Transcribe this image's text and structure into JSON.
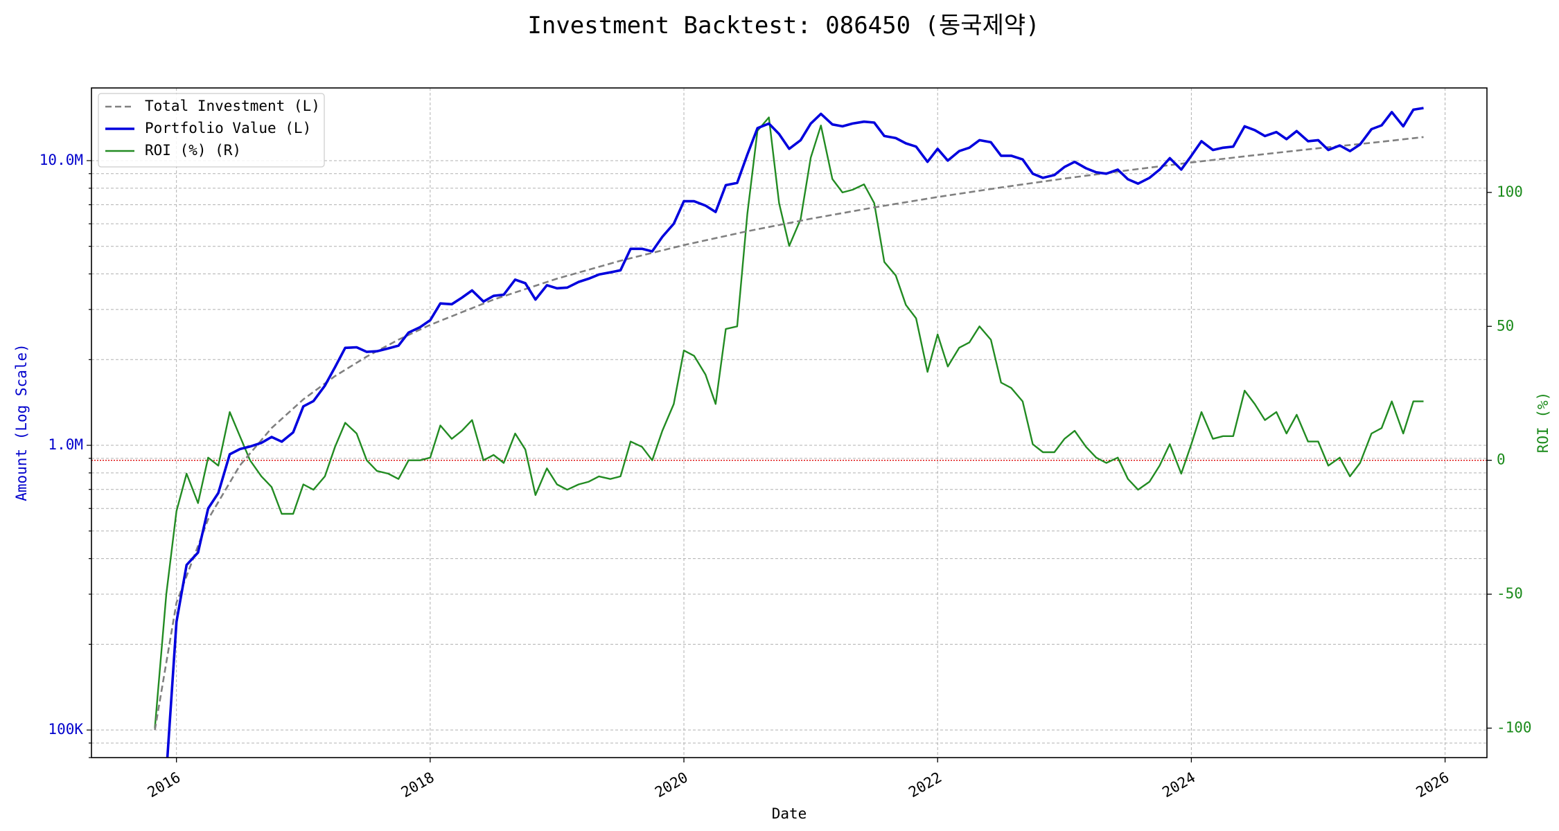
{
  "chart_data": {
    "type": "line",
    "title": "Investment Backtest: 086450 (동국제약)",
    "xlabel": "Date",
    "ylabel_left": "Amount (Log Scale)",
    "ylabel_right": "ROI (%)",
    "y_left_scale": "log",
    "y_left_range": [
      80000,
      18000000
    ],
    "y_left_ticks": [
      {
        "value": 100000,
        "label": "100K"
      },
      {
        "value": 1000000,
        "label": "1.0M"
      },
      {
        "value": 10000000,
        "label": "10.0M"
      }
    ],
    "y_right_range": [
      -111,
      139
    ],
    "y_right_ticks": [
      -100,
      -50,
      0,
      50,
      100
    ],
    "x_range": [
      2015.33,
      2026.33
    ],
    "x_ticks": [
      "2016",
      "2018",
      "2020",
      "2022",
      "2024",
      "2026"
    ],
    "grid": true,
    "legend_position": "top-left",
    "colors": {
      "investment": "#808080",
      "portfolio": "#0000dd",
      "roi": "#228b22",
      "zero_line": "#dd0000",
      "left_axis": "#0000cc",
      "right_axis": "#1a8a1a"
    },
    "reference_line": {
      "axis": "right",
      "value": 0,
      "style": "dotted"
    },
    "series": [
      {
        "name": "Total Investment (L)",
        "axis": "left",
        "style": "dashed",
        "x": [
          2015.83,
          2016.0,
          2016.25,
          2016.5,
          2016.75,
          2017.0,
          2017.25,
          2017.5,
          2017.75,
          2018.0,
          2018.5,
          2019.0,
          2019.5,
          2020.0,
          2020.5,
          2021.0,
          2021.5,
          2022.0,
          2022.5,
          2023.0,
          2023.5,
          2024.0,
          2024.5,
          2025.0,
          2025.5,
          2025.83
        ],
        "y": [
          100000,
          280000,
          550000,
          850000,
          1150000,
          1450000,
          1750000,
          2050000,
          2350000,
          2650000,
          3250000,
          3850000,
          4450000,
          5050000,
          5650000,
          6250000,
          6850000,
          7450000,
          8050000,
          8650000,
          9250000,
          9850000,
          10450000,
          11050000,
          11650000,
          12100000
        ]
      },
      {
        "name": "Portfolio Value (L)",
        "axis": "left",
        "style": "solid",
        "x": [
          2015.92,
          2016.0,
          2016.08,
          2016.17,
          2016.25,
          2016.33,
          2016.42,
          2016.5,
          2016.58,
          2016.67,
          2016.75,
          2016.83,
          2016.92,
          2017.0,
          2017.08,
          2017.17,
          2017.25,
          2017.33,
          2017.42,
          2017.5,
          2017.58,
          2017.67,
          2017.75,
          2017.83,
          2017.92,
          2018.0,
          2018.08,
          2018.17,
          2018.25,
          2018.33,
          2018.42,
          2018.5,
          2018.58,
          2018.67,
          2018.75,
          2018.83,
          2018.92,
          2019.0,
          2019.08,
          2019.17,
          2019.25,
          2019.33,
          2019.42,
          2019.5,
          2019.58,
          2019.67,
          2019.75,
          2019.83,
          2019.92,
          2020.0,
          2020.08,
          2020.17,
          2020.25,
          2020.33,
          2020.42,
          2020.5,
          2020.58,
          2020.67,
          2020.75,
          2020.83,
          2020.92,
          2021.0,
          2021.08,
          2021.17,
          2021.25,
          2021.33,
          2021.42,
          2021.5,
          2021.58,
          2021.67,
          2021.75,
          2021.83,
          2021.92,
          2022.0,
          2022.08,
          2022.17,
          2022.25,
          2022.33,
          2022.42,
          2022.5,
          2022.58,
          2022.67,
          2022.75,
          2022.83,
          2022.92,
          2023.0,
          2023.08,
          2023.17,
          2023.25,
          2023.33,
          2023.42,
          2023.5,
          2023.58,
          2023.67,
          2023.75,
          2023.83,
          2023.92,
          2024.0,
          2024.08,
          2024.17,
          2024.25,
          2024.33,
          2024.42,
          2024.5,
          2024.58,
          2024.67,
          2024.75,
          2024.83,
          2024.92,
          2025.0,
          2025.08,
          2025.17,
          2025.25,
          2025.33,
          2025.42,
          2025.5,
          2025.58,
          2025.67,
          2025.75,
          2025.83
        ],
        "y": [
          70000,
          240000,
          380000,
          420000,
          600000,
          680000,
          930000,
          970000,
          990000,
          1020000,
          1070000,
          1030000,
          1110000,
          1370000,
          1430000,
          1620000,
          1880000,
          2200000,
          2210000,
          2130000,
          2140000,
          2190000,
          2240000,
          2490000,
          2600000,
          2750000,
          3150000,
          3130000,
          3300000,
          3500000,
          3200000,
          3350000,
          3380000,
          3820000,
          3710000,
          3250000,
          3650000,
          3560000,
          3580000,
          3750000,
          3850000,
          3980000,
          4050000,
          4120000,
          4900000,
          4900000,
          4800000,
          5400000,
          6000000,
          7200000,
          7200000,
          6950000,
          6600000,
          8200000,
          8350000,
          10500000,
          13000000,
          13500000,
          12400000,
          11000000,
          11800000,
          13500000,
          14600000,
          13400000,
          13200000,
          13500000,
          13700000,
          13600000,
          12200000,
          12000000,
          11500000,
          11200000,
          9900000,
          11000000,
          10000000,
          10800000,
          11100000,
          11800000,
          11600000,
          10400000,
          10400000,
          10100000,
          9000000,
          8700000,
          8900000,
          9500000,
          9900000,
          9400000,
          9100000,
          9000000,
          9300000,
          8600000,
          8300000,
          8700000,
          9300000,
          10200000,
          9300000,
          10400000,
          11700000,
          10900000,
          11100000,
          11200000,
          13200000,
          12800000,
          12200000,
          12600000,
          11900000,
          12700000,
          11700000,
          11800000,
          10900000,
          11300000,
          10800000,
          11400000,
          12900000,
          13300000,
          14800000,
          13200000,
          15100000,
          15300000
        ]
      },
      {
        "name": "ROI (%) (R)",
        "axis": "right",
        "style": "solid",
        "x": [
          2015.83,
          2015.92,
          2016.0,
          2016.08,
          2016.17,
          2016.25,
          2016.33,
          2016.42,
          2016.5,
          2016.58,
          2016.67,
          2016.75,
          2016.83,
          2016.92,
          2017.0,
          2017.08,
          2017.17,
          2017.25,
          2017.33,
          2017.42,
          2017.5,
          2017.58,
          2017.67,
          2017.75,
          2017.83,
          2017.92,
          2018.0,
          2018.08,
          2018.17,
          2018.25,
          2018.33,
          2018.42,
          2018.5,
          2018.58,
          2018.67,
          2018.75,
          2018.83,
          2018.92,
          2019.0,
          2019.08,
          2019.17,
          2019.25,
          2019.33,
          2019.42,
          2019.5,
          2019.58,
          2019.67,
          2019.75,
          2019.83,
          2019.92,
          2020.0,
          2020.08,
          2020.17,
          2020.25,
          2020.33,
          2020.42,
          2020.5,
          2020.58,
          2020.67,
          2020.75,
          2020.83,
          2020.92,
          2021.0,
          2021.08,
          2021.17,
          2021.25,
          2021.33,
          2021.42,
          2021.5,
          2021.58,
          2021.67,
          2021.75,
          2021.83,
          2021.92,
          2022.0,
          2022.08,
          2022.17,
          2022.25,
          2022.33,
          2022.42,
          2022.5,
          2022.58,
          2022.67,
          2022.75,
          2022.83,
          2022.92,
          2023.0,
          2023.08,
          2023.17,
          2023.25,
          2023.33,
          2023.42,
          2023.5,
          2023.58,
          2023.67,
          2023.75,
          2023.83,
          2023.92,
          2024.0,
          2024.08,
          2024.17,
          2024.25,
          2024.33,
          2024.42,
          2024.5,
          2024.58,
          2024.67,
          2024.75,
          2024.83,
          2024.92,
          2025.0,
          2025.08,
          2025.17,
          2025.25,
          2025.33,
          2025.42,
          2025.5,
          2025.58,
          2025.67,
          2025.75,
          2025.83
        ],
        "y": [
          -100,
          -50,
          -19,
          -5,
          -16,
          1,
          -2,
          18,
          9,
          0,
          -6,
          -10,
          -20,
          -20,
          -9,
          -11,
          -6,
          5,
          14,
          10,
          0,
          -4,
          -5,
          -7,
          0,
          0,
          1,
          13,
          8,
          11,
          15,
          0,
          2,
          -1,
          10,
          4,
          -13,
          -3,
          -9,
          -11,
          -9,
          -8,
          -6,
          -7,
          -6,
          7,
          5,
          0,
          11,
          21,
          41,
          39,
          32,
          21,
          49,
          50,
          92,
          123,
          128,
          96,
          80,
          90,
          113,
          125,
          105,
          100,
          101,
          103,
          96,
          74,
          69,
          58,
          53,
          33,
          47,
          35,
          42,
          44,
          50,
          45,
          29,
          27,
          22,
          6,
          3,
          3,
          8,
          11,
          5,
          1,
          -1,
          1,
          -7,
          -11,
          -8,
          -2,
          6,
          -5,
          6,
          18,
          8,
          9,
          9,
          26,
          21,
          15,
          18,
          10,
          17,
          7,
          7,
          -2,
          1,
          -6,
          -1,
          10,
          12,
          22,
          10,
          22,
          22
        ]
      }
    ],
    "legend": [
      "Total Investment (L)",
      "Portfolio Value (L)",
      "ROI (%) (R)"
    ]
  }
}
